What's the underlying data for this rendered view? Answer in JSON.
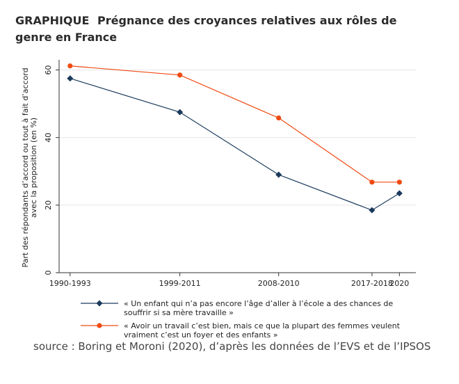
{
  "header": {
    "prefix": "GRAPHIQUE",
    "title": "Prégnance des croyances relatives aux rôles de genre en France"
  },
  "source": "source : Boring et Moroni (2020), d’après les données de l’EVS et de l’IPSOS",
  "chart_data": {
    "type": "line",
    "x": [
      1990,
      2000,
      2009,
      2017.5,
      2020
    ],
    "x_tick_labels": [
      "1990-1993",
      "1999-2011",
      "2008-2010",
      "2017-2018",
      "2020"
    ],
    "xlim": [
      1989,
      2021.5
    ],
    "ylabel": "Part des répondants d’accord ou tout à fait d’accord avec la proposition (en %)",
    "ylabel_lines": [
      "Part des répondants d’accord ou tout à fait d’accord",
      "avec la proposition (en %)"
    ],
    "ylim": [
      0,
      63
    ],
    "yticks": [
      0,
      20,
      40,
      60
    ],
    "grid": true,
    "legend_position": "bottom",
    "series": [
      {
        "name": "« Un enfant qui n’a pas encore l’âge d’aller à l’école a des chances de souffrir si sa mère travaille »",
        "legend_lines": [
          "« Un enfant qui n’a pas encore l’âge d’aller à l’école a des chances de",
          "souffrir si sa mère travaille »"
        ],
        "values": [
          57.5,
          47.5,
          29,
          18.5,
          23.5
        ],
        "color": "#1a3a5c",
        "marker": "diamond"
      },
      {
        "name": "« Avoir un travail c’est bien, mais ce que la plupart des femmes veulent vraiment c’est un foyer et des enfants »",
        "legend_lines": [
          "« Avoir un travail c’est bien, mais ce que la plupart des femmes veulent",
          "vraiment c’est un foyer et des enfants »"
        ],
        "values": [
          61.2,
          58.5,
          45.8,
          26.8,
          26.8
        ],
        "color": "#f04a12",
        "marker": "circle"
      }
    ]
  }
}
